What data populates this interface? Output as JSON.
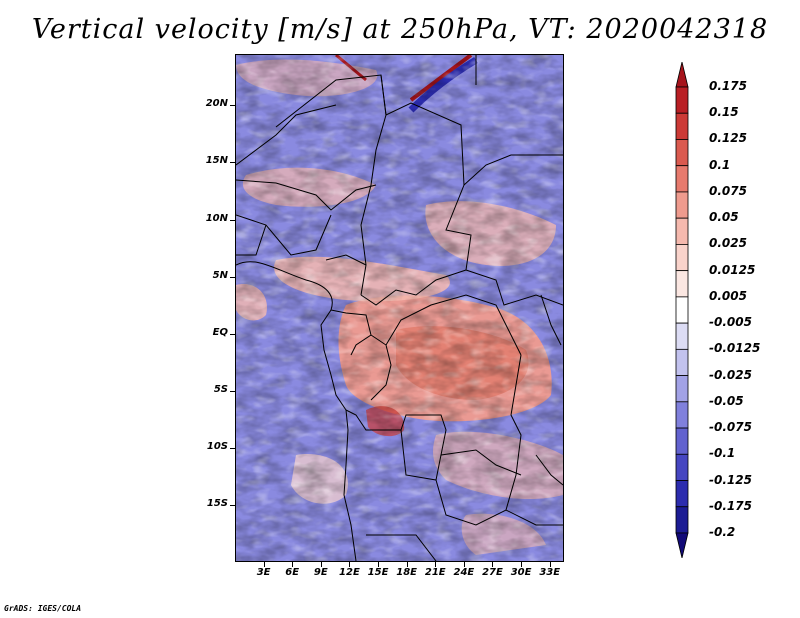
{
  "title": "Vertical velocity [m/s] at 250hPa, VT: 2020042318",
  "credit": "GrADS: IGES/COLA",
  "map": {
    "lat_labels": [
      "20N",
      "15N",
      "10N",
      "5N",
      "EQ",
      "5S",
      "10S",
      "15S"
    ],
    "lat_values": [
      20,
      15,
      10,
      5,
      0,
      -5,
      -10,
      -15
    ],
    "lon_labels": [
      "3E",
      "6E",
      "9E",
      "12E",
      "15E",
      "18E",
      "21E",
      "24E",
      "27E",
      "30E",
      "33E"
    ],
    "lon_values": [
      3,
      6,
      9,
      12,
      15,
      18,
      21,
      24,
      27,
      30,
      33
    ],
    "lat_range": [
      -20,
      24.5
    ],
    "lon_range": [
      0,
      34.5
    ]
  },
  "colorbar": {
    "labels": [
      "0.175",
      "0.15",
      "0.125",
      "0.1",
      "0.075",
      "0.05",
      "0.025",
      "0.0125",
      "0.005",
      "-0.005",
      "-0.0125",
      "-0.025",
      "-0.05",
      "-0.075",
      "-0.1",
      "-0.125",
      "-0.175",
      "-0.2"
    ],
    "colors": [
      "#a6141c",
      "#b91f24",
      "#cc3a36",
      "#da5a4f",
      "#e77a6d",
      "#ef9b8e",
      "#f5b9ae",
      "#f9d3cb",
      "#fbe7e2",
      "#ffffff",
      "#dcdcf4",
      "#c2c2ee",
      "#a2a2e6",
      "#8080dc",
      "#6262cf",
      "#4646c1",
      "#2c2cae",
      "#1c1c94",
      "#120a78"
    ]
  }
}
